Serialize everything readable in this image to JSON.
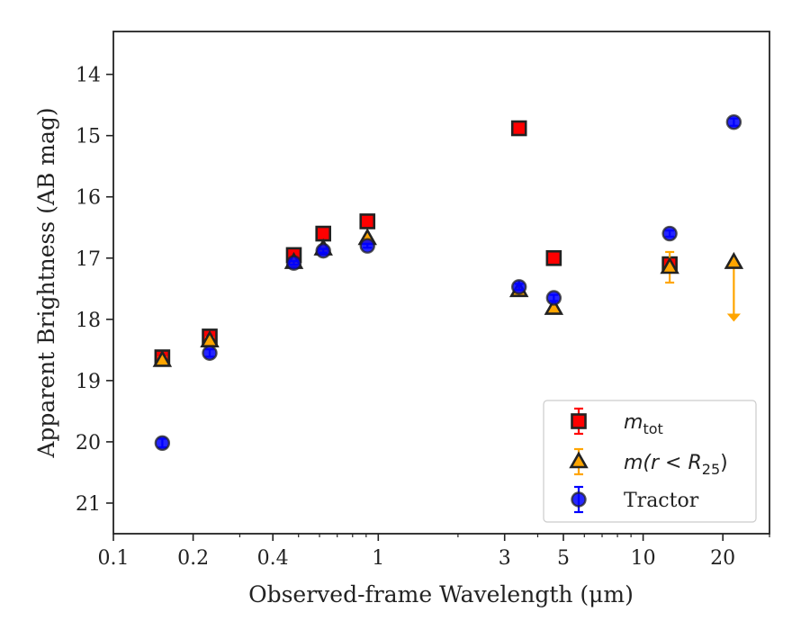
{
  "chart_data": {
    "type": "scatter",
    "xlabel": "Observed-frame Wavelength (μm)",
    "ylabel": "Apparent Brightness (AB mag)",
    "xscale": "log",
    "xlim": [
      0.1,
      30
    ],
    "ylim": [
      21.5,
      13.3
    ],
    "y_inverted": true,
    "xticks": [
      0.1,
      0.2,
      0.4,
      1,
      3,
      5,
      10,
      20
    ],
    "xtick_labels": [
      "0.1",
      "0.2",
      "0.4",
      "1",
      "3",
      "5",
      "10",
      "20"
    ],
    "yticks": [
      14,
      15,
      16,
      17,
      18,
      19,
      20,
      21
    ],
    "ytick_labels": [
      "14",
      "15",
      "16",
      "17",
      "18",
      "19",
      "20",
      "21"
    ],
    "grid": false,
    "legend": {
      "position": "lower-right",
      "entries": [
        {
          "label_main": "m",
          "label_sub": "tot",
          "marker": "square",
          "color": "#ff0000"
        },
        {
          "label_main": "m(r < R",
          "label_sub": "25",
          "label_end": ")",
          "marker": "triangle",
          "color": "#ffa500"
        },
        {
          "label_main": "Tractor",
          "marker": "circle",
          "color": "#0000ff"
        }
      ]
    },
    "series": [
      {
        "name": "m_tot",
        "marker": "square",
        "color": "#ff0000",
        "x": [
          0.153,
          0.231,
          0.48,
          0.62,
          0.91,
          3.4,
          4.6,
          12.6
        ],
        "y": [
          18.62,
          18.28,
          16.95,
          16.6,
          16.4,
          14.88,
          17.0,
          17.1
        ],
        "yerr": [
          0.05,
          0.05,
          0.03,
          0.03,
          0.03,
          0.03,
          0.03,
          0.1
        ]
      },
      {
        "name": "m(r<R25)",
        "marker": "triangle",
        "color": "#ffa500",
        "x": [
          0.153,
          0.231,
          0.48,
          0.62,
          0.91,
          3.4,
          4.6,
          12.6,
          22.0
        ],
        "y": [
          18.67,
          18.35,
          17.07,
          16.85,
          16.68,
          17.53,
          17.82,
          17.15,
          17.07
        ],
        "yerr": [
          0.05,
          0.05,
          0.03,
          0.03,
          0.03,
          0.03,
          0.03,
          0.25,
          0.0
        ],
        "upper_limit": [
          false,
          false,
          false,
          false,
          false,
          false,
          false,
          false,
          true
        ]
      },
      {
        "name": "Tractor",
        "marker": "circle",
        "color": "#0000ff",
        "x": [
          0.153,
          0.231,
          0.48,
          0.62,
          0.91,
          3.4,
          4.6,
          12.6,
          22.0
        ],
        "y": [
          20.02,
          18.55,
          17.08,
          16.88,
          16.8,
          17.47,
          17.65,
          16.6,
          14.78
        ],
        "yerr": [
          0.07,
          0.06,
          0.03,
          0.03,
          0.03,
          0.05,
          0.05,
          0.05,
          0.06
        ]
      }
    ]
  }
}
